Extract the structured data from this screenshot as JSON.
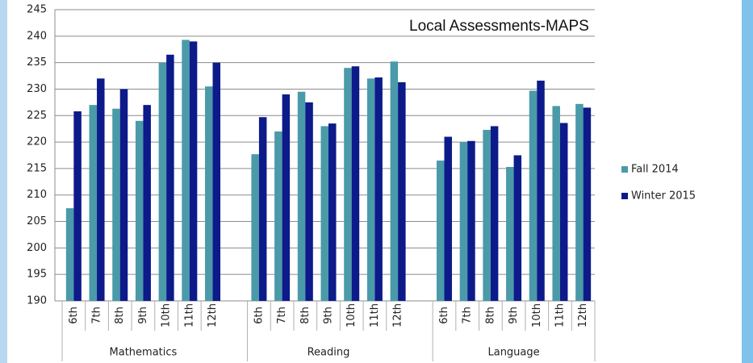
{
  "chart_data": {
    "type": "bar",
    "title": "Local Assessments-MAPS",
    "categories": [
      "6th",
      "7th",
      "8th",
      "9th",
      "10th",
      "11th",
      "12th",
      null,
      "6th",
      "7th",
      "8th",
      "9th",
      "10th",
      "11th",
      "12th",
      null,
      "6th",
      "7th",
      "8th",
      "9th",
      "10th",
      "11th",
      "12th"
    ],
    "groups": [
      "Mathematics",
      "Reading",
      "Language"
    ],
    "series": [
      {
        "name": "Fall 2014",
        "color": "#4a9aa9",
        "values": [
          207.5,
          227,
          226.3,
          224,
          235,
          239.3,
          230.5,
          null,
          217.7,
          222,
          229.5,
          223,
          234,
          232,
          235.2,
          null,
          216.5,
          220,
          222.3,
          215.3,
          229.7,
          226.8,
          227.2
        ]
      },
      {
        "name": "Winter 2015",
        "color": "#0d1a8a",
        "values": [
          225.8,
          232,
          230,
          227,
          236.5,
          239,
          235,
          null,
          224.7,
          229,
          227.5,
          223.5,
          234.3,
          232.2,
          231.3,
          null,
          221,
          220.2,
          223,
          217.5,
          231.6,
          223.6,
          226.5
        ]
      }
    ],
    "ylim": [
      190,
      245
    ],
    "yticks": [
      190,
      195,
      200,
      205,
      210,
      215,
      220,
      225,
      230,
      235,
      240,
      245
    ],
    "grid": true,
    "legend": "right"
  }
}
